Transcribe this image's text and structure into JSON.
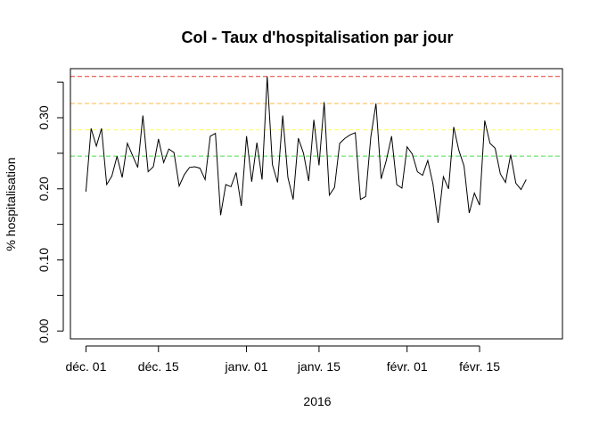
{
  "chart_data": {
    "type": "line",
    "title": "Col - Taux d'hospitalisation par jour",
    "xlabel": "2016",
    "ylabel": "% hospitalisation",
    "ylim": [
      0,
      0.36
    ],
    "xlim": [
      "2015-11-28",
      "2016-03-02"
    ],
    "y_ticks": [
      "0.00",
      "0.10",
      "0.20",
      "0.30"
    ],
    "y_tick_values": [
      0,
      0.05,
      0.1,
      0.15,
      0.2,
      0.25,
      0.3,
      0.35
    ],
    "x_ticks": [
      {
        "date": "2015-12-01",
        "label": "déc. 01"
      },
      {
        "date": "2015-12-15",
        "label": "déc. 15"
      },
      {
        "date": "2016-01-01",
        "label": "janv. 01"
      },
      {
        "date": "2016-01-15",
        "label": "janv. 15"
      },
      {
        "date": "2016-02-01",
        "label": "févr. 01"
      },
      {
        "date": "2016-02-15",
        "label": "févr. 15"
      }
    ],
    "start_date": "2015-12-01",
    "values": [
      0.196,
      0.285,
      0.26,
      0.285,
      0.206,
      0.218,
      0.246,
      0.216,
      0.264,
      0.247,
      0.23,
      0.303,
      0.224,
      0.231,
      0.27,
      0.237,
      0.256,
      0.251,
      0.204,
      0.22,
      0.23,
      0.231,
      0.229,
      0.213,
      0.274,
      0.278,
      0.163,
      0.206,
      0.203,
      0.223,
      0.176,
      0.274,
      0.21,
      0.265,
      0.213,
      0.358,
      0.234,
      0.209,
      0.303,
      0.216,
      0.185,
      0.271,
      0.25,
      0.211,
      0.297,
      0.233,
      0.322,
      0.191,
      0.202,
      0.264,
      0.271,
      0.276,
      0.279,
      0.185,
      0.189,
      0.273,
      0.32,
      0.214,
      0.24,
      0.274,
      0.206,
      0.201,
      0.259,
      0.249,
      0.224,
      0.219,
      0.24,
      0.207,
      0.152,
      0.217,
      0.2,
      0.287,
      0.254,
      0.232,
      0.166,
      0.194,
      0.177,
      0.296,
      0.264,
      0.257,
      0.221,
      0.209,
      0.248,
      0.208,
      0.199,
      0.213
    ],
    "reference_lines": [
      {
        "value": 0.358,
        "color": "#e63b2e"
      },
      {
        "value": 0.32,
        "color": "#ffb84d"
      },
      {
        "value": 0.283,
        "color": "#ffff66"
      },
      {
        "value": 0.246,
        "color": "#4ddd4d"
      }
    ],
    "line_color": "#000000",
    "grid": false
  }
}
